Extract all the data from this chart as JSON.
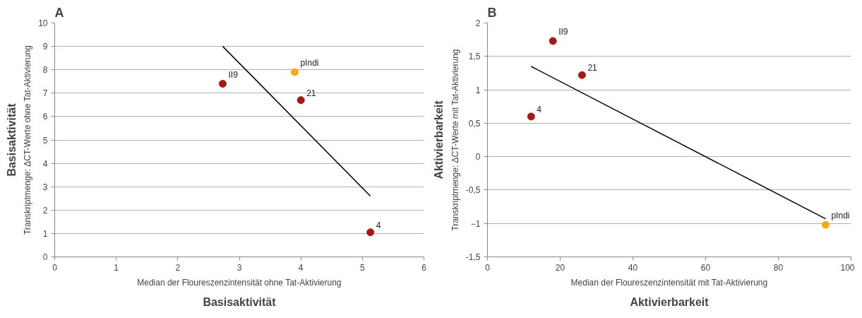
{
  "chart_data": [
    {
      "type": "scatter",
      "title": "A",
      "xlabel": "Median der Floureszenzintensität ohne Tat-Aktivierung",
      "ylabel": "Transkriptmenge: ΔCT-Werte ohne Tat-Aktivierung",
      "annotations": [
        "Basisaktivität",
        "Basisaktivität"
      ],
      "xlim": [
        0,
        6
      ],
      "xticks": [
        0,
        1,
        2,
        3,
        4,
        5,
        6
      ],
      "ylim": [
        0,
        10
      ],
      "yticks": [
        0,
        1,
        2,
        3,
        4,
        5,
        6,
        7,
        8,
        9,
        10
      ],
      "grid": "y",
      "series": [
        {
          "name": "II9",
          "color": "#a31a12",
          "marker": "circle",
          "x": [
            2.73
          ],
          "values": [
            7.4
          ]
        },
        {
          "name": "pIndi",
          "color": "#f5a623",
          "marker": "circle",
          "x": [
            3.9
          ],
          "values": [
            7.9
          ]
        },
        {
          "name": "21",
          "color": "#a31a12",
          "marker": "circle",
          "x": [
            4.0
          ],
          "values": [
            6.7
          ]
        },
        {
          "name": "4",
          "color": "#a31a12",
          "marker": "circle",
          "x": [
            5.13
          ],
          "values": [
            1.05
          ]
        },
        {
          "type": "line",
          "color": "#000000",
          "x": [
            2.73,
            5.13
          ],
          "values": [
            9.0,
            2.6
          ]
        }
      ]
    },
    {
      "type": "scatter",
      "title": "B",
      "xlabel": "Median der Floureszenzintensität mit Tat-Aktivierung",
      "ylabel": "Transkriptmenge: ΔCT-Werte mit Tat-Aktivierung",
      "annotations": [
        "Aktivierbarkeit",
        "Aktivierbarkeit"
      ],
      "xlim": [
        0,
        100
      ],
      "xticks": [
        0,
        20,
        40,
        60,
        80,
        100
      ],
      "ylim": [
        -1.5,
        2
      ],
      "yticks": [
        {
          "value": -1.5,
          "label": "-1,5"
        },
        -1,
        {
          "value": -0.5,
          "label": "-0,5"
        },
        0,
        {
          "value": 0.5,
          "label": "0,5"
        },
        1,
        {
          "value": 1.5,
          "label": "1,5"
        },
        2
      ],
      "grid": "y",
      "series": [
        {
          "name": "II9",
          "color": "#a31a12",
          "marker": "circle",
          "x": [
            18
          ],
          "values": [
            1.73
          ]
        },
        {
          "name": "21",
          "color": "#a31a12",
          "marker": "circle",
          "x": [
            26
          ],
          "values": [
            1.22
          ]
        },
        {
          "name": "4",
          "color": "#a31a12",
          "marker": "circle",
          "x": [
            12
          ],
          "values": [
            0.6
          ]
        },
        {
          "name": "pIndi",
          "color": "#f5a623",
          "marker": "circle",
          "x": [
            93
          ],
          "values": [
            -1.02
          ]
        },
        {
          "type": "line",
          "color": "#000000",
          "x": [
            12,
            93
          ],
          "values": [
            1.35,
            -0.93
          ]
        }
      ]
    }
  ]
}
